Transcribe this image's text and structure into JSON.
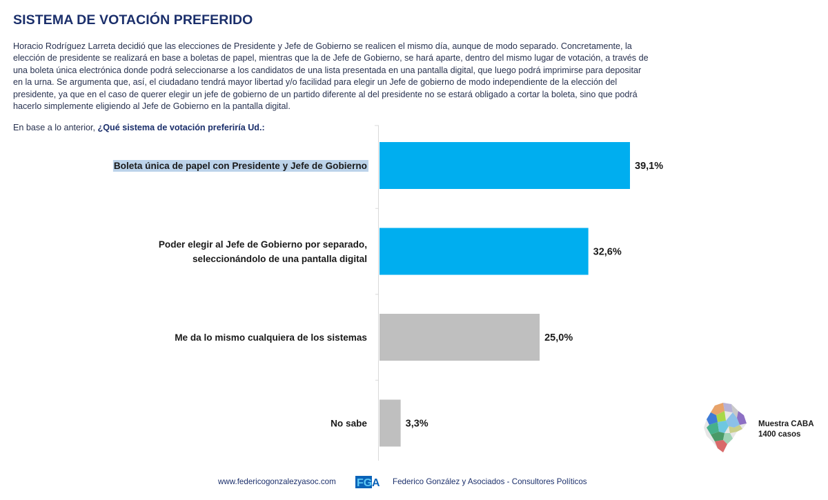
{
  "header": {
    "title": "SISTEMA DE VOTACIÓN PREFERIDO"
  },
  "intro": {
    "lines": [
      "Horacio Rodríguez Larreta decidió que las elecciones de Presidente y Jefe de Gobierno se realicen el mismo día, aunque de modo separado. Concretamente, la",
      "elección de presidente se realizará en base a boletas de papel, mientras que la de Jefe de Gobierno, se hará aparte, dentro del mismo lugar de votación, a través de",
      "una boleta única electrónica donde podrá seleccionarse a los candidatos de una lista presentada en una pantalla digital, que luego podrá imprimirse para depositar",
      "en la urna. Se argumenta que, así, el ciudadano tendrá mayor libertad y/o facilidad para elegir un Jefe de gobierno de modo independiente de la elección del",
      "presidente, ya que en el caso de querer elegir un jefe de gobierno de un partido diferente al del presidente no se estará obligado a cortar la boleta, sino que podrá",
      "hacerlo simplemente eligiendo al Jefe de Gobierno en la pantalla digital."
    ],
    "question_prefix": "En base a lo anterior, ",
    "question": "¿Qué sistema de votación preferiría Ud.:"
  },
  "chart_data": {
    "type": "bar",
    "orientation": "horizontal",
    "title": "SISTEMA DE VOTACIÓN PREFERIDO",
    "xlabel": "",
    "ylabel": "",
    "xlim": [
      0,
      42
    ],
    "grid": false,
    "legend": "none",
    "categories": [
      [
        "Boleta única de papel con Presidente y Jefe de Gobierno"
      ],
      [
        "Poder elegir al Jefe de Gobierno por separado,",
        "seleccionándolo de una pantalla digital"
      ],
      [
        "Me da lo mismo cualquiera de los sistemas"
      ],
      [
        "No sabe"
      ]
    ],
    "values": [
      39.1,
      32.6,
      25.0,
      3.3
    ],
    "value_labels": [
      "39,1%",
      "32,6%",
      "25,0%",
      "3,3%"
    ],
    "colors": [
      "#00aeef",
      "#00aeef",
      "#bfbfbf",
      "#bfbfbf"
    ],
    "unit": "%"
  },
  "sample": {
    "map_icon": "caba-map-icon",
    "line1": "Muestra CABA",
    "line2": "1400 casos"
  },
  "footer": {
    "url": "www.federicogonzalezyasoc.com",
    "logo_text": "FGA",
    "firm": "Federico González y Asociados - Consultores Políticos",
    "logo_color": "#0a63b8"
  }
}
